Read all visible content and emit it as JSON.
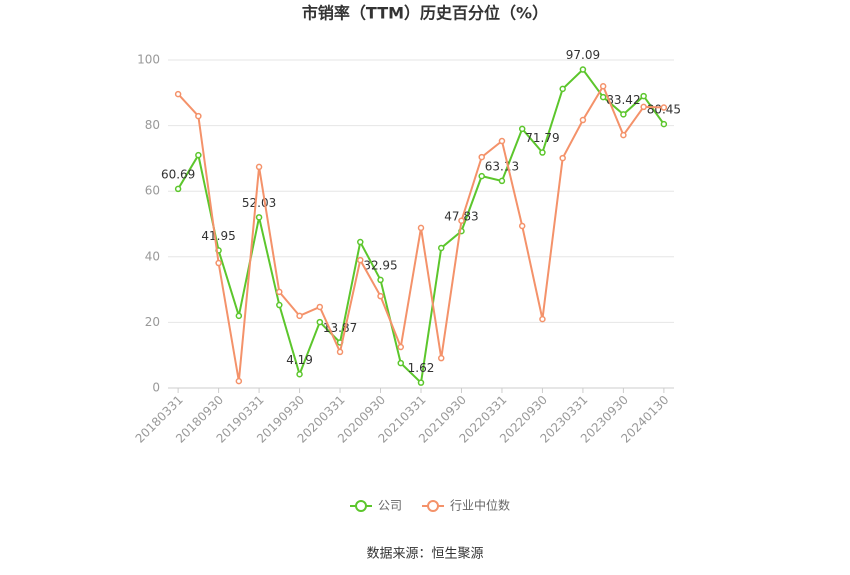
{
  "chart_data": {
    "type": "line",
    "title": "市销率（TTM）历史百分位（%）",
    "categories": [
      "20180331",
      null,
      "20180930",
      null,
      "20190331",
      null,
      "20190930",
      null,
      "20200331",
      null,
      "20200930",
      null,
      "20210331",
      null,
      "20210930",
      null,
      "20220331",
      null,
      "20220930",
      null,
      "20230331",
      null,
      "20230930",
      null,
      "20240130"
    ],
    "series": [
      {
        "name": "公司",
        "color": "#5cc62c",
        "values": [
          60.69,
          71.0,
          41.95,
          22.0,
          52.03,
          25.3,
          4.19,
          20.1,
          13.87,
          44.5,
          32.95,
          7.6,
          1.62,
          42.7,
          47.83,
          64.6,
          63.13,
          79.0,
          71.79,
          91.2,
          97.09,
          88.7,
          83.42,
          89.0,
          80.45
        ],
        "value_labels": [
          "60.69",
          null,
          "41.95",
          null,
          "52.03",
          null,
          "4.19",
          null,
          "13.87",
          null,
          "32.95",
          null,
          "1.62",
          null,
          "47.83",
          null,
          "63.13",
          null,
          "71.79",
          null,
          "97.09",
          null,
          "83.42",
          null,
          "80.45"
        ]
      },
      {
        "name": "行业中位数",
        "color": "#f4926a",
        "values": [
          89.6,
          82.9,
          38.1,
          2.1,
          67.4,
          29.3,
          22.0,
          24.7,
          11.0,
          39.0,
          28.0,
          12.5,
          48.8,
          9.1,
          51.0,
          70.4,
          75.3,
          49.4,
          21.0,
          70.1,
          81.7,
          92.0,
          77.1,
          85.7,
          85.5
        ]
      }
    ],
    "ylim": [
      0,
      100
    ],
    "yticks": [
      0,
      20,
      40,
      60,
      80,
      100
    ],
    "grid": true,
    "source": "数据来源：恒生聚源"
  }
}
